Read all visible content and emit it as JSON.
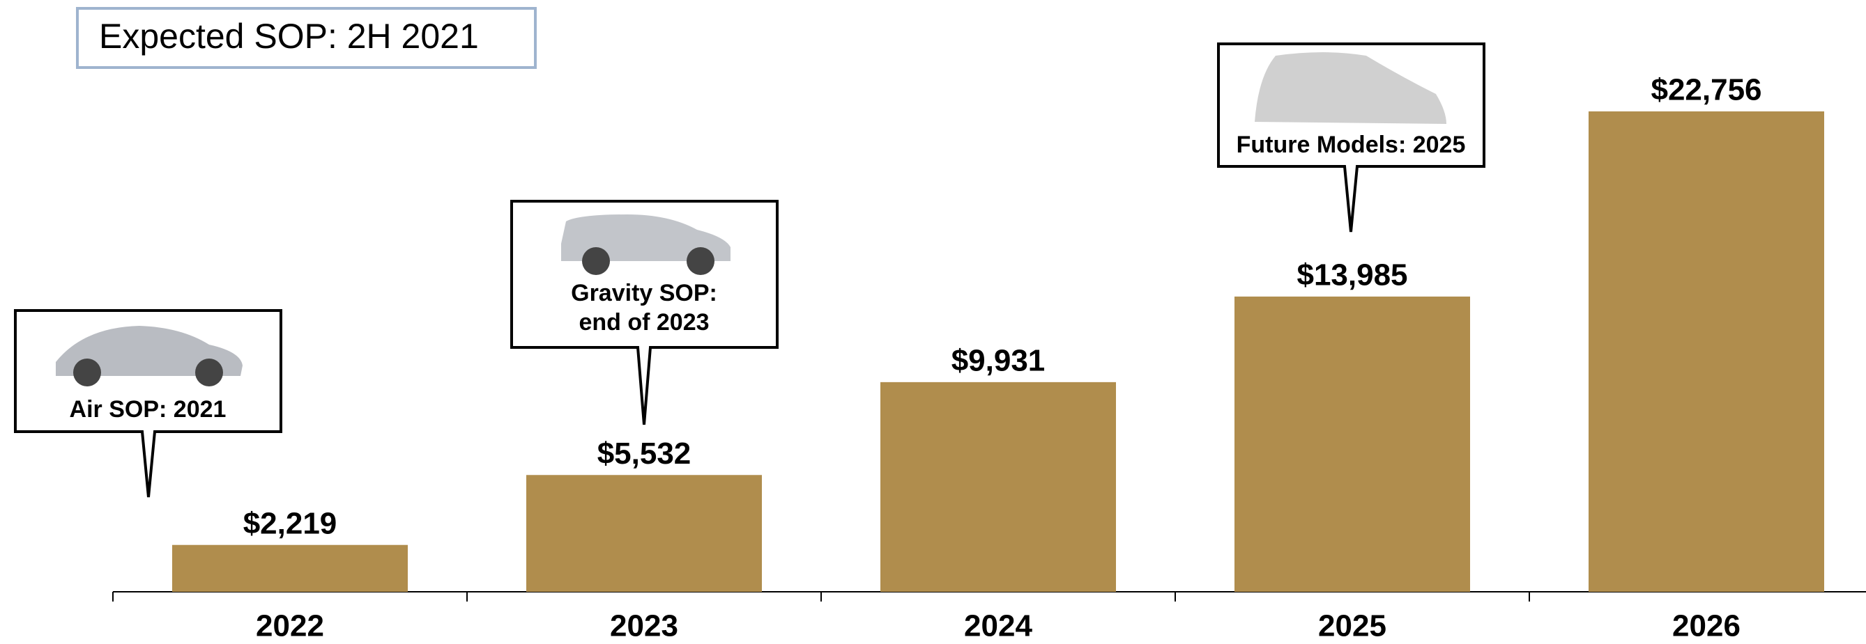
{
  "chart_data": {
    "type": "bar",
    "title": "Expected SOP:  2H 2021",
    "categories": [
      "2022",
      "2023",
      "2024",
      "2025",
      "2026"
    ],
    "values": [
      2219,
      5532,
      9931,
      13985,
      22756
    ],
    "value_labels": [
      "$2,219",
      "$5,532",
      "$9,931",
      "$13,985",
      "$22,756"
    ],
    "color": "#b08d4d",
    "callouts": [
      [
        "Air SOP: 2021"
      ],
      [
        "Gravity SOP:",
        "end of 2023"
      ],
      [
        "Future Models: 2025"
      ]
    ]
  }
}
